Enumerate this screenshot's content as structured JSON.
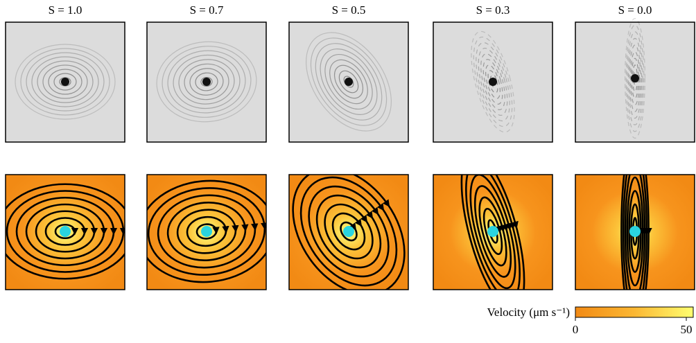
{
  "panels": [
    {
      "label": "S = 1.0"
    },
    {
      "label": "S = 0.7"
    },
    {
      "label": "S = 0.5"
    },
    {
      "label": "S = 0.3"
    },
    {
      "label": "S = 0.0"
    }
  ],
  "colorbar": {
    "label": "Velocity (μm s⁻¹)",
    "lim": [
      0,
      50
    ],
    "ticks": [
      0,
      50
    ]
  }
}
